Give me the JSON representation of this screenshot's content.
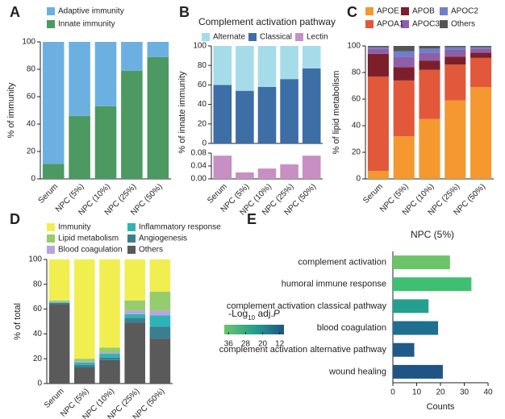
{
  "chart_data": [
    {
      "type": "bar",
      "panel": "A",
      "ylabel": "% of immunity",
      "categories": [
        "Serum",
        "NPC (5%)",
        "NPC (10%)",
        "NPC (25%)",
        "NPC (50%)"
      ],
      "series": [
        {
          "name": "Adaptive immunity",
          "color": "#6cb0e2",
          "values": [
            89,
            54,
            47,
            21,
            11
          ]
        },
        {
          "name": "Innate immunity",
          "color": "#4c9a62",
          "values": [
            11,
            46,
            53,
            79,
            89
          ]
        }
      ],
      "ylim": [
        0,
        100
      ],
      "yticks": [
        0,
        20,
        40,
        60,
        80,
        100
      ]
    },
    {
      "type": "bar",
      "panel": "B",
      "title": "Complement activation pathway",
      "ylabel": "% of innate immunity",
      "categories": [
        "Serum",
        "NPC (5%)",
        "NPC (10%)",
        "NPC (25%)",
        "NPC (50%)"
      ],
      "series": [
        {
          "name": "Alternate",
          "color": "#a6dcea",
          "values": [
            40,
            46,
            42,
            34,
            23
          ]
        },
        {
          "name": "Classical",
          "color": "#3e6ea6",
          "values": [
            60,
            54,
            58,
            66,
            77
          ]
        },
        {
          "name": "Lectin",
          "color": "#c88fc4",
          "axis": "y2",
          "values": [
            0.072,
            0.02,
            0.032,
            0.045,
            0.072
          ]
        }
      ],
      "ylim": [
        0,
        100
      ],
      "yticks": [
        0,
        20,
        40,
        60,
        80,
        100
      ],
      "y2lim": [
        0,
        0.08
      ],
      "y2ticks": [
        {
          "value": 0,
          "label": "0.00"
        },
        {
          "value": 0.04,
          "label": "0.04"
        },
        {
          "value": 0.08,
          "label": "0.08"
        }
      ]
    },
    {
      "type": "bar",
      "panel": "C",
      "ylabel": "% of lipid metabolism",
      "categories": [
        "Serum",
        "NPC (5%)",
        "NPC (10%)",
        "NPC (25%)",
        "NPC (50%)"
      ],
      "series": [
        {
          "name": "Others",
          "color": "#555555",
          "values": [
            1,
            4,
            2,
            1,
            1
          ]
        },
        {
          "name": "APOC2",
          "color": "#6e7fcc",
          "values": [
            1,
            4,
            3,
            2,
            1
          ]
        },
        {
          "name": "APOC3",
          "color": "#8e5fa9",
          "values": [
            4,
            8,
            6,
            5,
            3
          ]
        },
        {
          "name": "APOB",
          "color": "#7d1f2b",
          "values": [
            17,
            10,
            7,
            6,
            4
          ]
        },
        {
          "name": "APOA1",
          "color": "#e2583a",
          "values": [
            71,
            42,
            37,
            27,
            22
          ]
        },
        {
          "name": "APOE",
          "color": "#f4982f",
          "values": [
            6,
            32,
            45,
            59,
            69
          ]
        }
      ],
      "ylim": [
        0,
        100
      ],
      "yticks": [
        0,
        20,
        40,
        60,
        80,
        100
      ]
    },
    {
      "type": "bar",
      "panel": "D",
      "ylabel": "% of total",
      "categories": [
        "Serum",
        "NPC (5%)",
        "NPC (10%)",
        "NPC (25%)",
        "NPC (50%)"
      ],
      "series": [
        {
          "name": "Immunity",
          "color": "#f1ee50",
          "values": [
            33,
            80,
            71,
            33,
            26
          ]
        },
        {
          "name": "Lipid metabolism",
          "color": "#95cc6e",
          "values": [
            1,
            2,
            4,
            8,
            15
          ]
        },
        {
          "name": "Blood coagulation",
          "color": "#b6a6db",
          "values": [
            0.5,
            1,
            1,
            3,
            4
          ]
        },
        {
          "name": "Inflammatory response",
          "color": "#2db4b8",
          "values": [
            0.5,
            2,
            3,
            3,
            9
          ]
        },
        {
          "name": "Angiogenesis",
          "color": "#3a7f90",
          "values": [
            1,
            2,
            2,
            4,
            10
          ]
        },
        {
          "name": "Others",
          "color": "#5a5a5a",
          "values": [
            64,
            13,
            19,
            49,
            36
          ]
        }
      ],
      "ylim": [
        0,
        100
      ],
      "yticks": [
        0,
        20,
        40,
        60,
        80,
        100
      ]
    },
    {
      "type": "barh",
      "panel": "E",
      "title": "NPC (5%)",
      "xlabel": "Counts",
      "categories": [
        "complement activation",
        "humoral immune response",
        "complement activation classical pathway",
        "blood coagulation",
        "complement activation alternative pathway",
        "wound healing"
      ],
      "values": [
        24,
        33,
        15,
        19,
        9,
        21
      ],
      "colors": [
        "#6cc46a",
        "#3fbf71",
        "#25a08f",
        "#1f6f90",
        "#1f5a8a",
        "#1e5585"
      ],
      "xlim": [
        0,
        40
      ],
      "xticks": [
        0,
        10,
        20,
        30,
        40
      ],
      "colorbar_title": [
        "-Log",
        "10",
        " adj.",
        "P"
      ],
      "colorbar_lim": [
        38,
        10
      ],
      "colorbar_ticks": [
        36,
        28,
        20,
        12
      ],
      "colorbar_colors": [
        "#6cc46a",
        "#25a08f",
        "#1e5585"
      ]
    }
  ]
}
